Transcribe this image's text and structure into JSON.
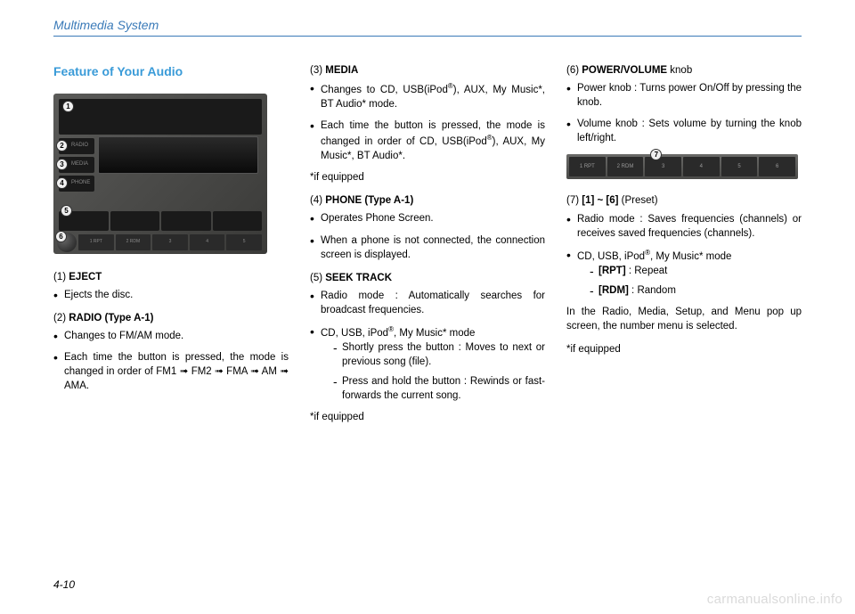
{
  "header": {
    "title": "Multimedia System"
  },
  "page_number": "4-10",
  "watermark": "carmanualsonline.info",
  "section_title": "Feature of Your Audio",
  "radio_labels": {
    "side": [
      "RADIO",
      "MEDIA",
      "PHONE"
    ],
    "presets": [
      "1 RPT",
      "2 RDM",
      "3",
      "4",
      "5"
    ],
    "seek": "SEEK\nTRACK"
  },
  "callouts": [
    "1",
    "2",
    "3",
    "4",
    "5",
    "6",
    "7"
  ],
  "preset_strip": [
    "1 RPT",
    "2 RDM",
    "3",
    "4",
    "5",
    "6"
  ],
  "col1": {
    "item1_head": "(1) <b>EJECT</b>",
    "item1_b1": "Ejects the disc.",
    "item2_head": "(2) <b>RADIO (Type A-1)</b>",
    "item2_b1": "Changes to FM/AM mode.",
    "item2_b2": "Each time the button is pressed, the mode is changed in order of FM1 ➟ FM2 ➟ FMA ➟ AM ➟ AMA."
  },
  "col2": {
    "item3_head": "(3) <b>MEDIA</b>",
    "item3_b1": "Changes to CD, USB(iPod<sup>®</sup>), AUX, My Music*, BT Audio* mode.",
    "item3_b2": "Each time the button is pressed, the mode is changed in order of CD, USB(iPod<sup>®</sup>), AUX, My Music*, BT Audio*.",
    "item3_note": "*if equipped",
    "item4_head": "(4) <b>PHONE (Type A-1)</b>",
    "item4_b1": "Operates Phone Screen.",
    "item4_b2": "When a phone is not connected, the connection screen is displayed.",
    "item5_head": "(5) <b>SEEK TRACK</b>",
    "item5_b1": "Radio mode : Automatically searches for broadcast frequencies.",
    "item5_b2": "CD, USB, iPod<sup>®</sup>, My Music* mode",
    "item5_s1": "Shortly press the button : Moves to next or previous song (file).",
    "item5_s2": "Press and hold the button : Rewinds or fast-forwards the current song.",
    "item5_note": "*if equipped"
  },
  "col3": {
    "item6_head": "(6) <b>POWER/VOLUME</b> knob",
    "item6_b1": "Power knob : Turns power On/Off by pressing the knob.",
    "item6_b2": "Volume knob : Sets volume by turning the knob left/right.",
    "item7_head": "(7) <b>[1] ~ [6]</b> (Preset)",
    "item7_b1": "Radio mode : Saves frequencies (channels) or receives saved frequencies (channels).",
    "item7_b2": "CD, USB, iPod<sup>®</sup>, My Music* mode",
    "item7_s1": "<b>[RPT]</b> : Repeat",
    "item7_s2": "<b>[RDM]</b> : Random",
    "item7_p1": "In the Radio, Media, Setup, and Menu pop up screen, the number menu is selected.",
    "item7_note": "*if equipped"
  }
}
